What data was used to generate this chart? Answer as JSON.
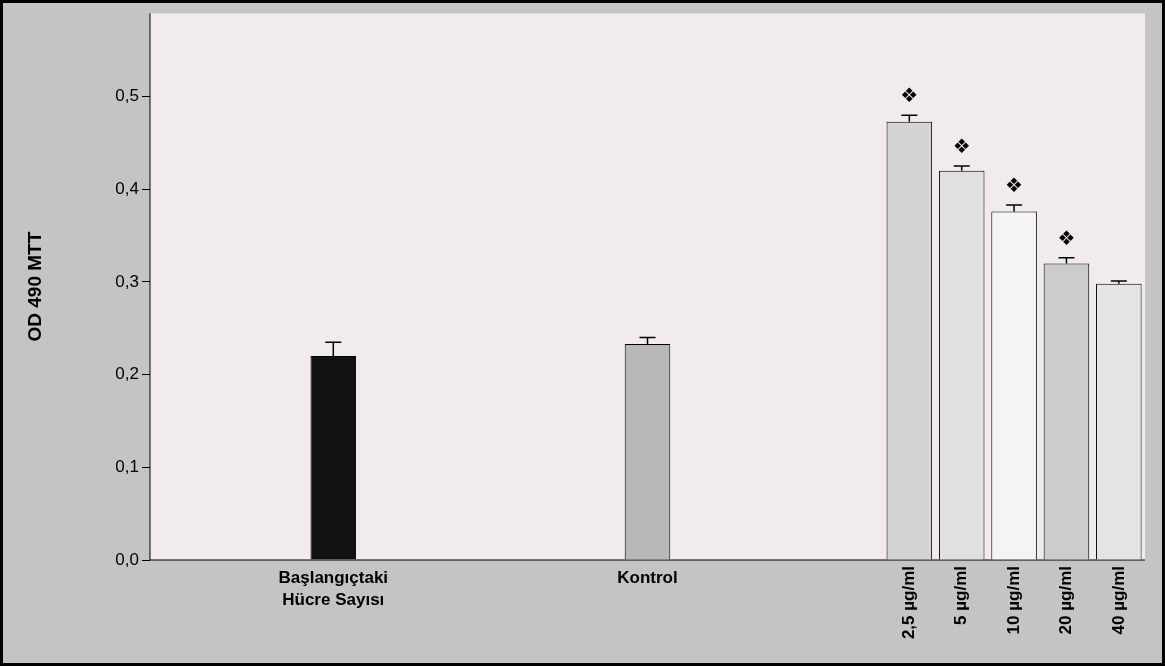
{
  "chart_data": {
    "type": "bar",
    "ylabel": "OD 490 MTT",
    "categories": [
      null,
      null,
      null,
      "Başlangıçtaki Hücre Sayısı",
      null,
      null,
      null,
      null,
      null,
      "Kontrol",
      null,
      null,
      null,
      null,
      "2,5 µg/ml",
      "5 µg/ml",
      "10 µg/ml",
      "20 µg/ml",
      "40 µg/ml"
    ],
    "values": [
      null,
      null,
      null,
      0.22,
      null,
      null,
      null,
      null,
      null,
      0.233,
      null,
      null,
      null,
      null,
      0.473,
      0.42,
      0.376,
      0.32,
      0.298
    ],
    "errors": [
      null,
      null,
      null,
      [
        0.22,
        0.235
      ],
      null,
      null,
      null,
      null,
      null,
      [
        0.233,
        0.24
      ],
      null,
      null,
      null,
      null,
      [
        0.473,
        0.48
      ],
      [
        0.42,
        0.425
      ],
      [
        0.376,
        0.383
      ],
      [
        0.32,
        0.326
      ],
      [
        0.298,
        0.301
      ]
    ],
    "colors": [
      "#ffffff",
      "#ffffff",
      "#ffffff",
      "#111111",
      "#ffffff",
      "#ffffff",
      "#ffffff",
      "#ffffff",
      "#ffffff",
      "#b8b8b8",
      "#ffffff",
      "#ffffff",
      "#ffffff",
      "#ffffff",
      "#d4d4d4",
      "#e0e0e0",
      "#f4f4f4",
      "#cccccc",
      "#e4e4e4"
    ],
    "ylim": [
      0,
      0.59
    ],
    "yticks": [
      {
        "value": 0,
        "label": "0,0"
      },
      {
        "value": 0.1,
        "label": "0,1"
      },
      {
        "value": 0.2,
        "label": "0,2"
      },
      {
        "value": 0.3,
        "label": "0,3"
      },
      {
        "value": 0.4,
        "label": "0,4"
      },
      {
        "value": 0.5,
        "label": "0,5"
      }
    ],
    "grid": false,
    "legend": false,
    "annotations": [
      {
        "text": "❖",
        "x": "2,5 µg/ml",
        "y": 0.473
      },
      {
        "text": "❖",
        "x": "5 µg/ml",
        "y": 0.42
      },
      {
        "text": "❖",
        "x": "10 µg/ml",
        "y": 0.376
      },
      {
        "text": "❖",
        "x": "20 µg/ml",
        "y": 0.32
      }
    ]
  }
}
